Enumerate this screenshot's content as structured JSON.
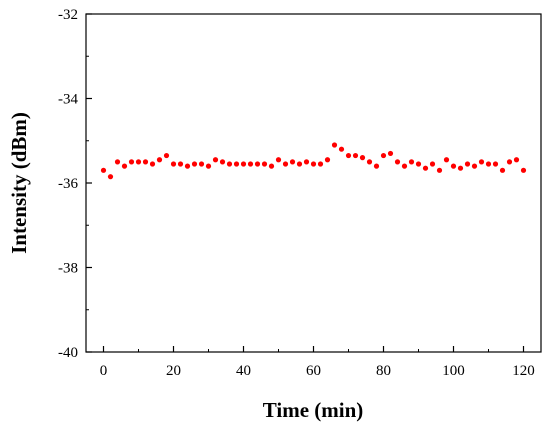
{
  "chart_data": {
    "type": "scatter",
    "title": "",
    "xlabel": "Time (min)",
    "ylabel": "Intensity (dBm)",
    "xlim": [
      -5,
      125
    ],
    "ylim": [
      -40,
      -32
    ],
    "xticks": [
      0,
      20,
      40,
      60,
      80,
      100,
      120
    ],
    "yticks": [
      -40,
      -38,
      -36,
      -34,
      -32
    ],
    "xtick_labels": [
      "0",
      "20",
      "40",
      "60",
      "80",
      "100",
      "120"
    ],
    "ytick_labels": [
      "-40",
      "-38",
      "-36",
      "-34",
      "-32"
    ],
    "grid": false,
    "legend": "none",
    "marker_color": "#ff0000",
    "series": [
      {
        "x": [
          0,
          2,
          4,
          6,
          8,
          10,
          12,
          14,
          16,
          18,
          20,
          22,
          24,
          26,
          28,
          30,
          32,
          34,
          36,
          38,
          40,
          42,
          44,
          46,
          48,
          50,
          52,
          54,
          56,
          58,
          60,
          62,
          64,
          66,
          68,
          70,
          72,
          74,
          76,
          78,
          80,
          82,
          84,
          86,
          88,
          90,
          92,
          94,
          96,
          98,
          100,
          102,
          104,
          106,
          108,
          110,
          112,
          114,
          116,
          118,
          120
        ],
        "y": [
          -35.7,
          -35.85,
          -35.5,
          -35.6,
          -35.5,
          -35.5,
          -35.5,
          -35.55,
          -35.45,
          -35.35,
          -35.55,
          -35.55,
          -35.6,
          -35.55,
          -35.55,
          -35.6,
          -35.45,
          -35.5,
          -35.55,
          -35.55,
          -35.55,
          -35.55,
          -35.55,
          -35.55,
          -35.6,
          -35.45,
          -35.55,
          -35.5,
          -35.55,
          -35.5,
          -35.55,
          -35.55,
          -35.45,
          -35.1,
          -35.2,
          -35.35,
          -35.35,
          -35.4,
          -35.5,
          -35.6,
          -35.35,
          -35.3,
          -35.5,
          -35.6,
          -35.5,
          -35.55,
          -35.65,
          -35.55,
          -35.7,
          -35.45,
          -35.6,
          -35.65,
          -35.55,
          -35.6,
          -35.5,
          -35.55,
          -35.55,
          -35.7,
          -35.5,
          -35.45,
          -35.7
        ]
      }
    ]
  }
}
